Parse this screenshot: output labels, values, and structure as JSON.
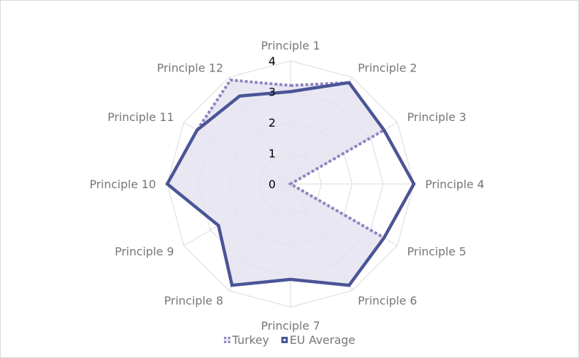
{
  "chart_data": {
    "type": "radar",
    "categories": [
      "Principle 1",
      "Principle 2",
      "Principle 3",
      "Principle 4",
      "Principle 5",
      "Principle 6",
      "Principle 7",
      "Principle 8",
      "Principle 9",
      "Principle 10",
      "Principle 11",
      "Principle 12"
    ],
    "series": [
      {
        "name": "Turkey",
        "color": "#8e84c0",
        "fill": "#e3e1ef",
        "line": "dotted",
        "values": [
          3.2,
          3.8,
          3.5,
          0.0,
          3.5,
          3.8,
          3.1,
          3.8,
          2.7,
          4.0,
          3.5,
          3.9
        ]
      },
      {
        "name": "EU Average",
        "color": "#4a5597",
        "line": "solid",
        "values": [
          3.0,
          3.8,
          3.5,
          4.0,
          3.5,
          3.8,
          3.1,
          3.8,
          2.7,
          4.0,
          3.5,
          3.3
        ]
      }
    ],
    "ticks": [
      "0",
      "1",
      "2",
      "3",
      "4"
    ],
    "rmin": 0,
    "rmax": 4,
    "grid": true,
    "legend_position": "bottom"
  }
}
